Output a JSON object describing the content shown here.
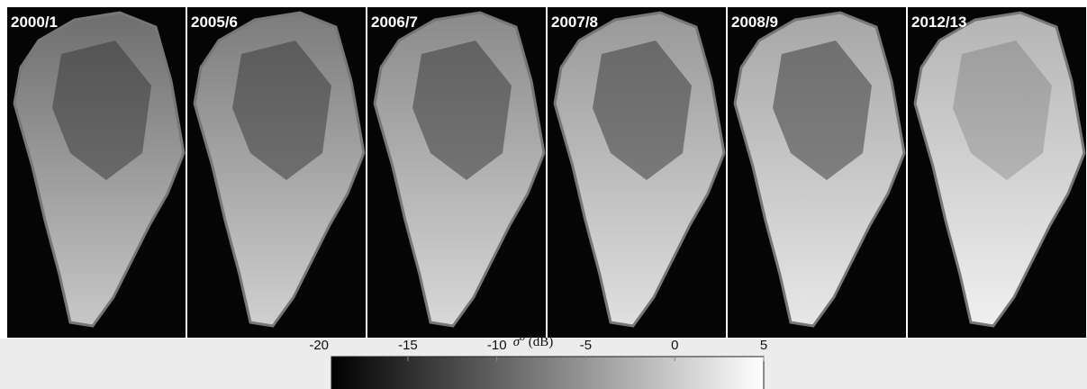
{
  "panels": [
    {
      "label": "2000/1"
    },
    {
      "label": "2005/6"
    },
    {
      "label": "2006/7"
    },
    {
      "label": "2007/8"
    },
    {
      "label": "2008/9"
    },
    {
      "label": "2012/13"
    }
  ],
  "colorbar": {
    "label": {
      "symbol": "σ",
      "superscript": "o",
      "unit": "(dB)"
    },
    "lim": [
      -19.3,
      5
    ],
    "ticks": [
      -20,
      -15,
      -10,
      -5,
      0,
      5
    ]
  }
}
